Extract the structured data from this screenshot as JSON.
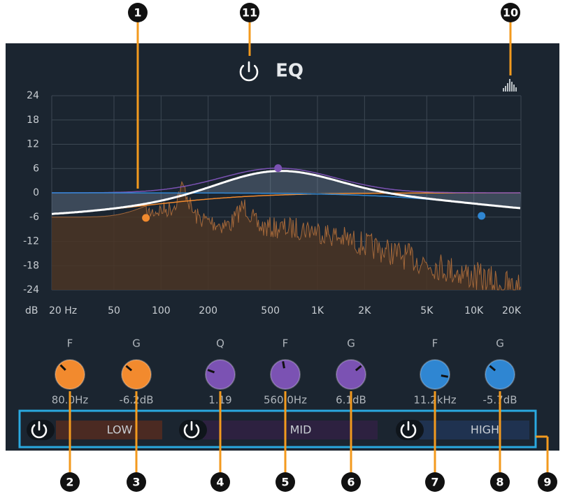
{
  "header": {
    "title": "EQ"
  },
  "graph": {
    "ylim": [
      -24,
      24
    ],
    "yticks": [
      24,
      18,
      12,
      6,
      0,
      -6,
      -12,
      -18,
      -24
    ],
    "y_unit": "dB",
    "xlim": [
      20,
      20000
    ],
    "x_log": true,
    "xticks": [
      {
        "value": 20,
        "label": "20 Hz"
      },
      50,
      100,
      200,
      500,
      {
        "value": 1000,
        "label": "1K"
      },
      {
        "value": 2000,
        "label": "2K"
      },
      {
        "value": 5000,
        "label": "5K"
      },
      {
        "value": 10000,
        "label": "10K"
      },
      {
        "value": 20000,
        "label": "20K"
      }
    ],
    "grid": true
  },
  "bands": [
    {
      "name": "LOW",
      "color": "#f28a2e",
      "controls": [
        {
          "label": "F",
          "value": 80,
          "value_label": "80.0Hz"
        },
        {
          "label": "G",
          "value": -6.2,
          "value_label": "-6.2dB"
        }
      ]
    },
    {
      "name": "MID",
      "color": "#7b52b3",
      "controls": [
        {
          "label": "Q",
          "value": 1.19
        },
        {
          "label": "F",
          "value": 560,
          "value_label": "560.0Hz"
        },
        {
          "label": "G",
          "value": 6.1,
          "value_label": "6.1dB"
        }
      ]
    },
    {
      "name": "HIGH",
      "color": "#2f86d2",
      "controls": [
        {
          "label": "F",
          "value": 11200,
          "value_label": "11.2kHz"
        },
        {
          "label": "G",
          "value": -5.7,
          "value_label": "-5.7dB"
        }
      ]
    }
  ],
  "callouts": [
    "1",
    "2",
    "3",
    "4",
    "5",
    "6",
    "7",
    "8",
    "9",
    "10",
    "11"
  ]
}
